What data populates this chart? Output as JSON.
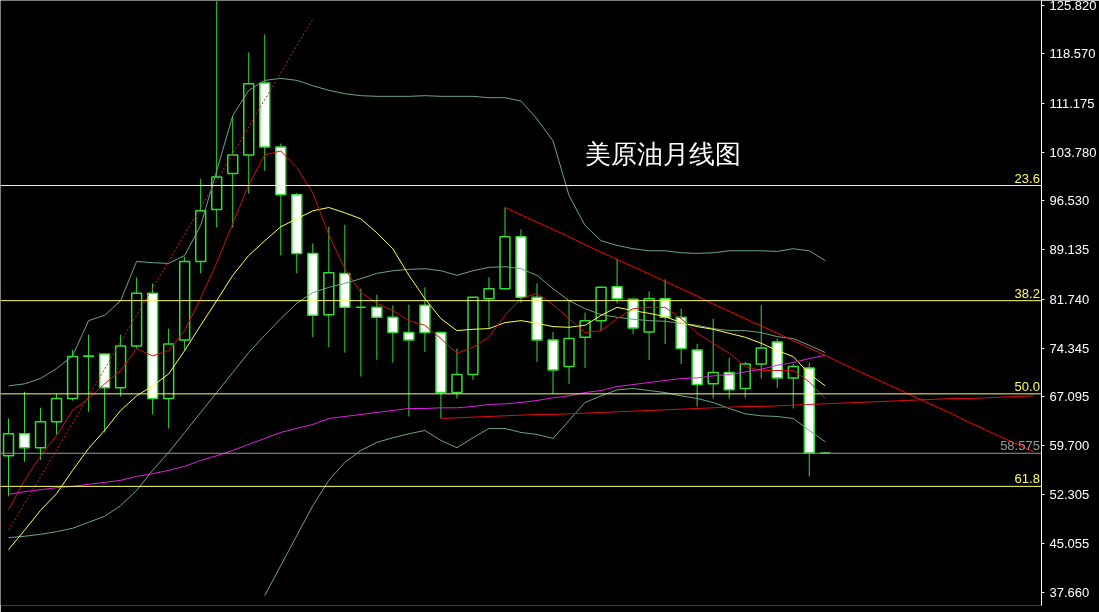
{
  "chart_data": {
    "type": "candlestick",
    "title": "美原油月线图",
    "categories": [
      null,
      null,
      null,
      null,
      null,
      null,
      null,
      null,
      null,
      null,
      null,
      null,
      null,
      null,
      null,
      null,
      null,
      null,
      null,
      null,
      null,
      null,
      null,
      null,
      null,
      null,
      null,
      null,
      null,
      null,
      null,
      null,
      null,
      null,
      null,
      null,
      null,
      null,
      null,
      null,
      null,
      null,
      null,
      null,
      null,
      null,
      null,
      null,
      null,
      null,
      null,
      null,
      null,
      null,
      null,
      null,
      null,
      null,
      null,
      null,
      null,
      null,
      null,
      null,
      null
    ],
    "ylim": [
      35.7,
      126.6
    ],
    "yticks": [
      {
        "value": 125.82,
        "label": "125.820"
      },
      {
        "value": 118.57,
        "label": "118.570"
      },
      {
        "value": 111.175,
        "label": "111.175"
      },
      {
        "value": 103.78,
        "label": "103.780"
      },
      {
        "value": 96.53,
        "label": "96.530"
      },
      {
        "value": 89.135,
        "label": "89.135"
      },
      {
        "value": 81.74,
        "label": "81.740"
      },
      {
        "value": 74.345,
        "label": "74.345"
      },
      {
        "value": 67.095,
        "label": "67.095"
      },
      {
        "value": 59.7,
        "label": "59.700"
      },
      {
        "value": 52.305,
        "label": "52.305"
      },
      {
        "value": 45.055,
        "label": "45.055"
      },
      {
        "value": 37.66,
        "label": "37.660"
      }
    ],
    "tick_labels": "y",
    "annotations": [
      {
        "text": "23.6",
        "y": 98.8
      },
      {
        "text": "38.2",
        "y": 81.5
      },
      {
        "text": "50.0",
        "y": 67.5
      },
      {
        "text": "61.8",
        "y": 53.6
      }
    ],
    "ref_lines": [
      {
        "axis": "y",
        "value": 98.8,
        "color": "#ffff66"
      },
      {
        "axis": "y",
        "value": 81.5,
        "color": "#ffff66"
      },
      {
        "axis": "y",
        "value": 67.5,
        "color": "#ffff66"
      },
      {
        "axis": "y",
        "value": 53.6,
        "color": "#ffff66"
      },
      {
        "axis": "y",
        "value": 58.575,
        "label": "58.575",
        "color": "#9a9a9a"
      }
    ],
    "series": [
      {
        "type": "line",
        "color": "#6aa584",
        "values": [
          68.7,
          69.0,
          69.8,
          71.3,
          73.2,
          78.5,
          79.3,
          81.5,
          87.4,
          87.2,
          87.1,
          88.3,
          92.8,
          101.0,
          109.3,
          113.1,
          114.6,
          114.9,
          114.6,
          113.8,
          113.1,
          112.6,
          112.3,
          112.2,
          112.2,
          112.2,
          112.3,
          112.2,
          112.2,
          112.2,
          112.0,
          112.0,
          111.5,
          108.8,
          105.5,
          97.3,
          92.8,
          90.5,
          89.8,
          89.3,
          89.0,
          89.0,
          88.7,
          88.6,
          88.7,
          89.0,
          89.0,
          89.0,
          88.9,
          89.3,
          89.0,
          87.5,
          null,
          null,
          null,
          null,
          null,
          null,
          null,
          null,
          null,
          null,
          null,
          null,
          null
        ]
      },
      {
        "type": "line",
        "color": "#6aa584",
        "values": [
          45.9,
          46.1,
          46.4,
          46.8,
          47.3,
          48.2,
          49.1,
          50.7,
          53.0,
          56.0,
          58.7,
          61.7,
          64.7,
          67.7,
          70.7,
          73.7,
          76.3,
          78.8,
          81.1,
          82.7,
          83.5,
          84.1,
          84.8,
          85.6,
          86.0,
          86.2,
          86.3,
          86.0,
          85.3,
          86.0,
          86.5,
          86.6,
          86.3,
          85.3,
          83.3,
          81.5,
          80.3,
          79.4,
          79.0,
          78.7,
          78.5,
          78.4,
          78.1,
          77.8,
          77.3,
          77.0,
          77.0,
          76.7,
          76.1,
          75.8,
          74.8,
          73.7,
          null,
          null,
          null,
          null,
          null,
          null,
          null,
          null,
          null,
          null,
          null,
          null,
          null
        ]
      },
      {
        "type": "line",
        "color": "#6aa584",
        "values": [
          null,
          null,
          null,
          null,
          null,
          null,
          null,
          null,
          null,
          null,
          null,
          null,
          null,
          null,
          null,
          null,
          37.2,
          41.7,
          46.2,
          50.7,
          54.5,
          57.2,
          59.0,
          60.2,
          60.9,
          61.5,
          62.0,
          60.5,
          59.4,
          60.9,
          62.3,
          62.3,
          61.7,
          61.4,
          60.8,
          63.5,
          66.2,
          67.2,
          68.1,
          68.3,
          68.0,
          67.7,
          67.2,
          66.8,
          66.2,
          65.3,
          64.5,
          64.2,
          64.1,
          63.8,
          62.0,
          60.3,
          null,
          null,
          null,
          null,
          null,
          null,
          null,
          null,
          null,
          null,
          null,
          null,
          null
        ]
      },
      {
        "type": "line",
        "color": "#ffff4d",
        "values": [
          44.1,
          47.0,
          50.0,
          52.5,
          56.0,
          59.3,
          62.0,
          65.0,
          67.2,
          68.7,
          70.5,
          74.0,
          77.8,
          81.5,
          85.3,
          88.3,
          90.5,
          92.6,
          93.8,
          95.0,
          95.5,
          94.7,
          93.8,
          91.7,
          89.3,
          85.3,
          81.8,
          78.8,
          77.0,
          77.2,
          77.3,
          78.2,
          78.5,
          78.1,
          77.6,
          77.5,
          77.8,
          79.3,
          80.5,
          80.0,
          79.6,
          79.1,
          78.2,
          77.6,
          77.2,
          76.6,
          76.0,
          75.1,
          74.0,
          73.1,
          70.5,
          68.7,
          null,
          null,
          null,
          null,
          null,
          null,
          null,
          null,
          null,
          null,
          null,
          null,
          null
        ]
      },
      {
        "type": "line",
        "color": "#d01010",
        "values": [
          50.1,
          54.5,
          58.2,
          61.2,
          65.0,
          66.8,
          69.0,
          71.0,
          74.3,
          73.2,
          74.0,
          77.0,
          81.9,
          87.2,
          93.1,
          98.9,
          103.4,
          104.0,
          101.5,
          97.7,
          91.4,
          86.3,
          82.7,
          81.1,
          80.0,
          78.5,
          77.8,
          75.8,
          73.6,
          74.5,
          76.0,
          79.3,
          81.8,
          82.6,
          80.9,
          78.8,
          76.7,
          77.0,
          78.8,
          80.3,
          80.5,
          80.5,
          78.8,
          76.6,
          75.1,
          73.6,
          71.6,
          71.0,
          71.0,
          71.0,
          69.3,
          66.8,
          null,
          null,
          null,
          null,
          null,
          null,
          null,
          null,
          null,
          null,
          null,
          null,
          null
        ]
      },
      {
        "type": "line",
        "color": "#e020e0",
        "values": [
          52.4,
          52.8,
          53.1,
          53.4,
          53.6,
          53.9,
          54.2,
          54.5,
          55.1,
          55.5,
          56.0,
          56.6,
          57.5,
          58.2,
          59.0,
          59.9,
          60.8,
          61.7,
          62.3,
          62.9,
          63.8,
          64.1,
          64.4,
          64.7,
          65.0,
          65.3,
          65.3,
          65.4,
          65.4,
          65.6,
          65.9,
          66.0,
          66.2,
          66.5,
          66.9,
          67.2,
          67.7,
          68.0,
          68.6,
          68.9,
          69.2,
          69.5,
          69.8,
          69.9,
          70.2,
          70.4,
          70.8,
          71.2,
          71.8,
          72.2,
          72.8,
          73.3,
          null,
          null,
          null,
          null,
          null,
          null,
          null,
          null,
          null,
          null,
          null,
          null,
          null
        ]
      },
      {
        "type": "line",
        "color": "#ff0000",
        "values": [
          null,
          null,
          null,
          null,
          null,
          null,
          null,
          null,
          null,
          null,
          null,
          null,
          null,
          null,
          null,
          null,
          null,
          null,
          null,
          null,
          null,
          null,
          null,
          null,
          null,
          null,
          null,
          null,
          null,
          null,
          null,
          95.5,
          94.4,
          93.3,
          92.2,
          91.1,
          89.9,
          88.8,
          87.7,
          86.6,
          85.5,
          84.4,
          83.3,
          82.2,
          81.0,
          79.9,
          78.8,
          77.7,
          76.6,
          75.5,
          74.4,
          73.3,
          72.1,
          71.0,
          69.9,
          68.8,
          67.7,
          66.6,
          65.5,
          64.4,
          63.2,
          62.1,
          61.0,
          59.9,
          58.8
        ]
      },
      {
        "type": "line",
        "color": "#e01010",
        "values": [
          null,
          null,
          null,
          null,
          null,
          null,
          null,
          null,
          null,
          null,
          null,
          null,
          null,
          null,
          null,
          null,
          null,
          null,
          null,
          null,
          null,
          null,
          null,
          null,
          null,
          null,
          null,
          63.8,
          63.9,
          64.0,
          64.1,
          64.2,
          64.3,
          64.4,
          64.4,
          64.5,
          64.6,
          64.7,
          64.8,
          64.9,
          65.0,
          65.1,
          65.2,
          65.3,
          65.4,
          65.5,
          65.6,
          65.6,
          65.7,
          65.8,
          65.9,
          66.0,
          66.1,
          66.2,
          66.3,
          66.4,
          66.5,
          66.6,
          66.7,
          66.8,
          66.8,
          66.9,
          67.0,
          67.1,
          67.2
        ]
      },
      {
        "type": "line",
        "color": "#d02020",
        "line_style": "dotted",
        "values": [
          47.0,
          51.0,
          55.0,
          59.1,
          63.1,
          67.2,
          71.2,
          75.3,
          79.3,
          83.4,
          87.4,
          91.5,
          95.5,
          99.5,
          103.6,
          107.6,
          111.7,
          115.7,
          119.8,
          123.8,
          null,
          null,
          null,
          null,
          null,
          null,
          null,
          null,
          null,
          null,
          null,
          null,
          null,
          null,
          null,
          null,
          null,
          null,
          null,
          null,
          null,
          null,
          null,
          null,
          null,
          null,
          null,
          null,
          null,
          null,
          null,
          null,
          null,
          null,
          null,
          null,
          null,
          null,
          null,
          null,
          null,
          null,
          null,
          null,
          null
        ]
      },
      {
        "color": "#33dd33",
        "ohlc": [
          [
            58.2,
            63.8,
            52.1,
            61.5
          ],
          [
            61.5,
            67.8,
            57.3,
            59.4
          ],
          [
            59.4,
            65.4,
            57.6,
            63.3
          ],
          [
            63.3,
            67.5,
            61.4,
            66.8
          ],
          [
            66.8,
            74.1,
            66.5,
            73.1
          ],
          [
            73.1,
            76.4,
            64.8,
            73.2
          ],
          [
            73.5,
            73.6,
            61.7,
            68.4
          ],
          [
            68.4,
            76.4,
            67.1,
            74.7
          ],
          [
            74.7,
            85.0,
            74.3,
            82.6
          ],
          [
            82.6,
            84.1,
            64.4,
            66.8
          ],
          [
            66.8,
            77.3,
            62.3,
            75.0
          ],
          [
            75.6,
            88.1,
            74.0,
            87.4
          ],
          [
            87.4,
            99.8,
            85.6,
            95.0
          ],
          [
            95.2,
            126.5,
            92.5,
            100.1
          ],
          [
            100.6,
            109.2,
            92.5,
            103.4
          ],
          [
            103.4,
            118.8,
            97.6,
            114.1
          ],
          [
            114.2,
            121.5,
            101.0,
            104.6
          ],
          [
            104.6,
            105.1,
            88.3,
            97.4
          ],
          [
            97.4,
            97.7,
            85.6,
            88.6
          ],
          [
            88.6,
            90.1,
            76.0,
            79.3
          ],
          [
            79.4,
            92.6,
            74.5,
            85.7
          ],
          [
            85.6,
            92.9,
            73.7,
            80.5
          ],
          [
            80.5,
            83.3,
            70.1,
            80.5
          ],
          [
            80.5,
            82.4,
            72.6,
            79.0
          ],
          [
            79.0,
            80.8,
            72.2,
            76.7
          ],
          [
            76.7,
            80.9,
            64.1,
            75.6
          ],
          [
            80.8,
            83.5,
            73.8,
            76.7
          ],
          [
            76.7,
            76.8,
            63.8,
            67.7
          ],
          [
            67.7,
            74.3,
            66.8,
            70.4
          ],
          [
            70.4,
            82.1,
            69.6,
            82.0
          ],
          [
            81.8,
            85.0,
            77.4,
            83.3
          ],
          [
            83.3,
            95.5,
            83.2,
            91.1
          ],
          [
            91.1,
            92.2,
            81.2,
            82.0
          ],
          [
            82.0,
            84.1,
            72.3,
            75.6
          ],
          [
            75.6,
            76.8,
            67.5,
            71.1
          ],
          [
            71.6,
            81.5,
            69.0,
            75.8
          ],
          [
            76.0,
            79.7,
            71.4,
            78.5
          ],
          [
            78.5,
            83.6,
            77.0,
            83.5
          ],
          [
            83.6,
            87.7,
            81.1,
            81.8
          ],
          [
            81.7,
            81.8,
            76.5,
            77.4
          ],
          [
            76.8,
            82.9,
            72.6,
            81.8
          ],
          [
            81.8,
            84.7,
            75.0,
            79.0
          ],
          [
            79.0,
            80.3,
            72.0,
            74.3
          ],
          [
            74.1,
            75.0,
            65.6,
            68.9
          ],
          [
            69.0,
            78.8,
            66.8,
            70.7
          ],
          [
            70.7,
            72.9,
            66.8,
            68.1
          ],
          [
            68.3,
            72.3,
            66.9,
            72.0
          ],
          [
            72.0,
            80.8,
            69.8,
            74.4
          ],
          [
            75.3,
            75.8,
            68.4,
            69.9
          ],
          [
            69.9,
            72.0,
            65.3,
            71.6
          ],
          [
            71.4,
            72.2,
            55.1,
            58.6
          ],
          [
            58.6,
            58.8,
            58.5,
            58.6
          ],
          null,
          null,
          null,
          null,
          null,
          null,
          null,
          null,
          null,
          null,
          null,
          null,
          null
        ]
      }
    ]
  }
}
